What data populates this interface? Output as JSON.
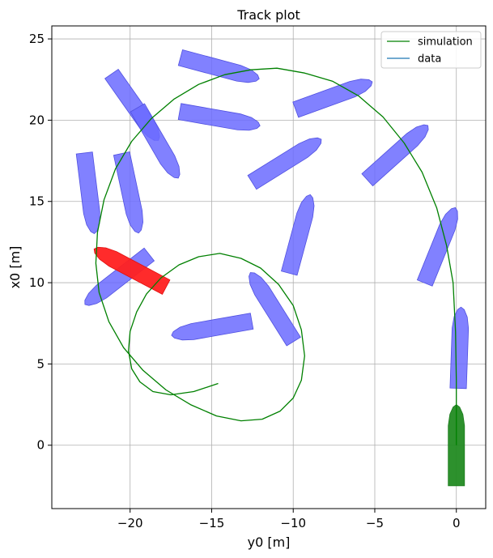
{
  "chart_data": {
    "type": "line",
    "title": "Track plot",
    "xlabel": "y0 [m]",
    "ylabel": "x0 [m]",
    "xlim": [
      -24.8,
      1.8
    ],
    "ylim": [
      -3.9,
      25.8
    ],
    "xticks": [
      -20,
      -15,
      -10,
      -5,
      0
    ],
    "yticks": [
      0,
      5,
      10,
      15,
      20,
      25
    ],
    "xtick_labels": [
      "−20",
      "−15",
      "−10",
      "−5",
      "0"
    ],
    "ytick_labels": [
      "0",
      "5",
      "10",
      "15",
      "20",
      "25"
    ],
    "grid": true,
    "legend_position": "top-right",
    "series": [
      {
        "name": "simulation",
        "color": "#008000",
        "x": [
          0.0,
          0.0,
          -0.05,
          -0.2,
          -0.6,
          -1.2,
          -2.1,
          -3.2,
          -4.5,
          -6.0,
          -7.6,
          -9.3,
          -11.0,
          -12.6,
          -14.2,
          -15.8,
          -17.3,
          -18.7,
          -19.9,
          -20.9,
          -21.6,
          -22.0,
          -22.1,
          -21.9,
          -21.3,
          -20.4,
          -19.2,
          -17.8,
          -16.3,
          -14.7,
          -13.2,
          -11.9,
          -10.8,
          -10.0,
          -9.5,
          -9.3,
          -9.5,
          -10.0,
          -10.9,
          -12.0,
          -13.2,
          -14.5,
          -15.8,
          -17.0,
          -18.1,
          -19.0,
          -19.6,
          -20.0,
          -20.1,
          -19.9,
          -19.4,
          -18.6,
          -17.5,
          -16.1,
          -14.6
        ],
        "y": [
          0.0,
          4.0,
          7.0,
          10.0,
          12.3,
          14.6,
          16.8,
          18.6,
          20.2,
          21.5,
          22.4,
          22.9,
          23.2,
          23.1,
          22.8,
          22.2,
          21.3,
          20.1,
          18.7,
          17.0,
          15.1,
          13.1,
          11.2,
          9.4,
          7.6,
          6.0,
          4.6,
          3.4,
          2.5,
          1.8,
          1.5,
          1.6,
          2.1,
          2.9,
          4.0,
          5.5,
          7.1,
          8.6,
          9.9,
          10.9,
          11.5,
          11.8,
          11.6,
          11.1,
          10.3,
          9.3,
          8.2,
          7.0,
          5.8,
          4.7,
          3.9,
          3.3,
          3.1,
          3.3,
          3.8
        ]
      },
      {
        "name": "data",
        "color": "#1f77b4",
        "x": [],
        "y": []
      }
    ],
    "ship_outlines": {
      "start_color": "#228B22",
      "end_color": "#FF2020",
      "intermediate_color": "#6B6BFF",
      "start": {
        "x": 0.0,
        "y": 0.0,
        "heading_deg": 0
      },
      "end": {
        "x": -20.0,
        "y": 10.9,
        "heading_deg": -62
      },
      "intermediate": [
        {
          "x": 0.2,
          "y": 6.0,
          "heading_deg": 2
        },
        {
          "x": -1.0,
          "y": 12.3,
          "heading_deg": 22
        },
        {
          "x": -3.6,
          "y": 18.0,
          "heading_deg": 48
        },
        {
          "x": -7.5,
          "y": 21.5,
          "heading_deg": 70
        },
        {
          "x": -14.5,
          "y": 23.2,
          "heading_deg": 105
        },
        {
          "x": -19.7,
          "y": 20.8,
          "heading_deg": 145
        },
        {
          "x": -22.5,
          "y": 15.5,
          "heading_deg": 173
        },
        {
          "x": -20.8,
          "y": 10.2,
          "heading_deg": -128
        },
        {
          "x": -15.0,
          "y": 7.2,
          "heading_deg": -100
        },
        {
          "x": -11.3,
          "y": 8.5,
          "heading_deg": -32
        },
        {
          "x": -9.6,
          "y": 13.0,
          "heading_deg": 15
        },
        {
          "x": -10.4,
          "y": 17.5,
          "heading_deg": 58
        },
        {
          "x": -14.5,
          "y": 20.1,
          "heading_deg": 100
        },
        {
          "x": -18.3,
          "y": 18.6,
          "heading_deg": 150
        },
        {
          "x": -20.0,
          "y": 15.5,
          "heading_deg": 168
        }
      ]
    }
  }
}
